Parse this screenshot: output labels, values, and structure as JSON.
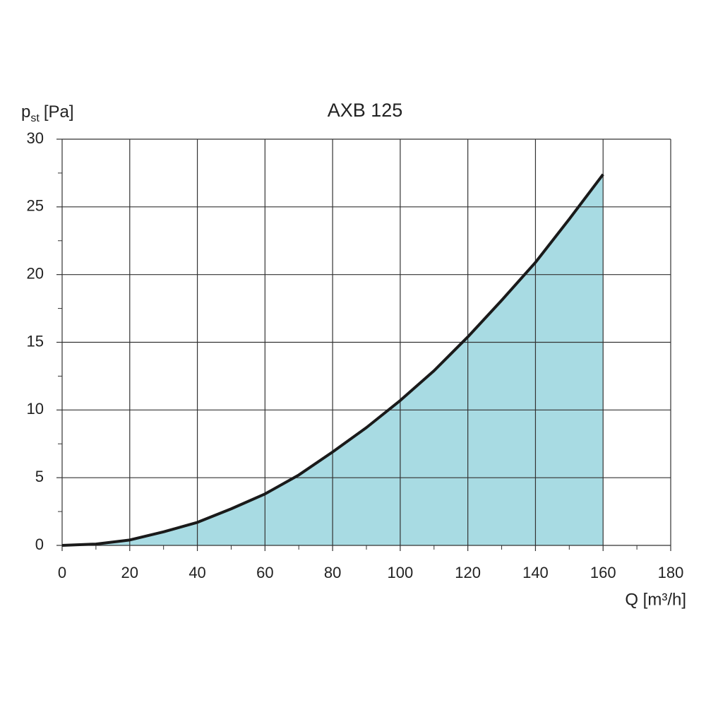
{
  "chart_data": {
    "type": "area",
    "title": "AXB 125",
    "ylabel": {
      "base": "p",
      "sub": "st",
      "unit": "[Pa]"
    },
    "xlabel": "Q [m³/h]",
    "x": [
      0,
      10,
      20,
      30,
      40,
      50,
      60,
      70,
      80,
      90,
      100,
      110,
      120,
      130,
      140,
      150,
      160
    ],
    "series": [
      {
        "color": "#1a1a1a",
        "fill": "#a8dbe3",
        "values": [
          0,
          0.1,
          0.4,
          1.0,
          1.7,
          2.7,
          3.8,
          5.2,
          6.9,
          8.7,
          10.7,
          12.9,
          15.4,
          18.1,
          20.9,
          24.1,
          27.4
        ]
      }
    ],
    "xlim": [
      0,
      180
    ],
    "ylim": [
      0,
      30
    ],
    "xticks": [
      0,
      20,
      40,
      60,
      80,
      100,
      120,
      140,
      160,
      180
    ],
    "yticks": [
      0,
      5,
      10,
      15,
      20,
      25,
      30
    ],
    "xminorticks": [
      10,
      30,
      50,
      70,
      90,
      110,
      130,
      150,
      170
    ],
    "yminorticks": [
      2.5,
      7.5,
      12.5,
      17.5,
      22.5,
      27.5
    ],
    "grid": true
  }
}
